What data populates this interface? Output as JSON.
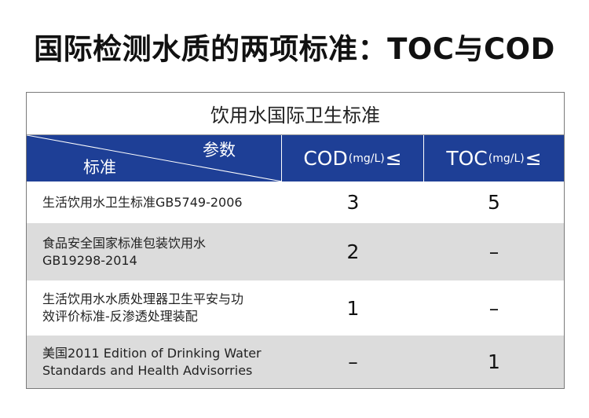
{
  "title": "国际检测水质的两项标准：TOC与COD",
  "table": {
    "caption": "饮用水国际卫生标准",
    "header": {
      "standard_label": "标准",
      "param_label": "参数",
      "cod": {
        "name": "COD",
        "unit": "(mg/L)",
        "op": "≤"
      },
      "toc": {
        "name": "TOC",
        "unit": "(mg/L)",
        "op": "≤"
      }
    },
    "rows": [
      {
        "standard": "生活饮用水卫生标准GB5749-2006",
        "cod": "3",
        "toc": "5"
      },
      {
        "standard": "食品安全国家标准包装饮用水\nGB19298-2014",
        "cod": "2",
        "toc": "–"
      },
      {
        "standard": "生活饮用水水质处理器卫生平安与功\n效评价标准-反渗透处理装配",
        "cod": "1",
        "toc": "–"
      },
      {
        "standard": "美国2011 Edition of Drinking Water\nStandards and Health Advisorries",
        "cod": "–",
        "toc": "1"
      }
    ]
  }
}
